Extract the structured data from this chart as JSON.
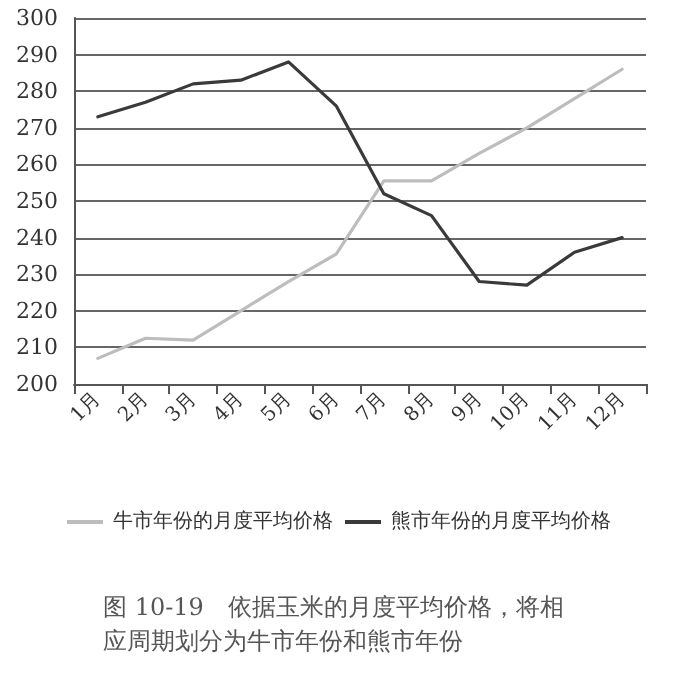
{
  "chart_data": {
    "type": "line",
    "categories": [
      "1月",
      "2月",
      "3月",
      "4月",
      "5月",
      "6月",
      "7月",
      "8月",
      "9月",
      "10月",
      "11月",
      "12月"
    ],
    "series": [
      {
        "name": "牛市年份的月度平均价格",
        "color": "#bdbdbd",
        "values": [
          207,
          212.5,
          212,
          220,
          228,
          235.5,
          255.5,
          255.5,
          263,
          270,
          278,
          286
        ]
      },
      {
        "name": "熊市年份的月度平均价格",
        "color": "#3a3a3a",
        "values": [
          273,
          277,
          282,
          283,
          288,
          276,
          252,
          246,
          228,
          227,
          236,
          240
        ]
      }
    ],
    "ylim": [
      200,
      300
    ],
    "yticks": [
      200,
      210,
      220,
      230,
      240,
      250,
      260,
      270,
      280,
      290,
      300
    ],
    "grid": "y",
    "legend": "bottom",
    "marker": "none",
    "line_style": "solid",
    "annotations": [
      "图 10-19　依据玉米的月度平均价格，将相应周期划分为牛市年份和熊市年份"
    ]
  }
}
